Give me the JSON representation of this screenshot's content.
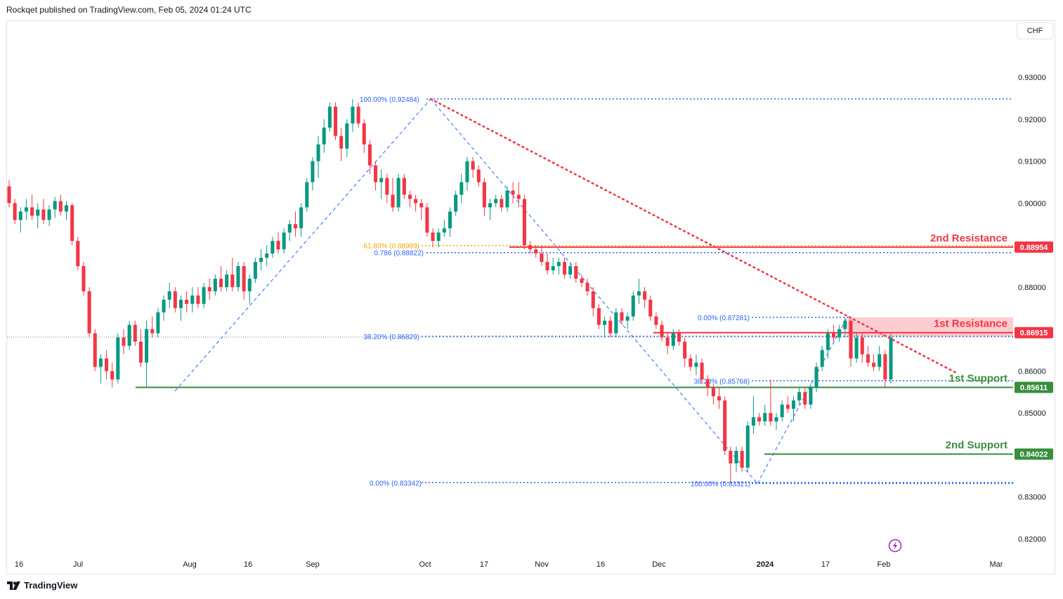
{
  "header": {
    "published": "Rockqet published on TradingView.com, Feb 05, 2024 01:24 UTC"
  },
  "toolbar": {
    "currency": "CHF"
  },
  "footer": {
    "brand": "TradingView"
  },
  "icons": {
    "footer_logo": "tradingview-logo-icon",
    "flash": "lightning-icon"
  },
  "colors": {
    "up": "#089981",
    "down": "#f23645",
    "fib": "#2962ff",
    "golden": "#f7a600",
    "resistance": "#f23645",
    "support": "#388e3c",
    "axis_text": "#131722"
  },
  "chart_data": {
    "type": "candlestick",
    "symbol_currency": "CHF",
    "ylim": [
      0.815,
      0.937
    ],
    "y_ticks": [
      "0.93000",
      "0.92000",
      "0.91000",
      "0.90000",
      "0.88000",
      "0.86000",
      "0.85000",
      "0.83000",
      "0.82000"
    ],
    "x_ticks": [
      {
        "label": "16",
        "bold": false
      },
      {
        "label": "Jul",
        "bold": false
      },
      {
        "label": "Aug",
        "bold": false
      },
      {
        "label": "16",
        "bold": false
      },
      {
        "label": "Sep",
        "bold": false
      },
      {
        "label": "Oct",
        "bold": false
      },
      {
        "label": "17",
        "bold": false
      },
      {
        "label": "Nov",
        "bold": false
      },
      {
        "label": "16",
        "bold": false
      },
      {
        "label": "Dec",
        "bold": false
      },
      {
        "label": "2024",
        "bold": true
      },
      {
        "label": "17",
        "bold": false
      },
      {
        "label": "Feb",
        "bold": false
      },
      {
        "label": "Mar",
        "bold": false
      }
    ],
    "price_tags": [
      {
        "label": "0.88954",
        "value": 0.88954,
        "color": "#f23645"
      },
      {
        "label": "0.86915",
        "value": 0.86915,
        "color": "#f23645"
      },
      {
        "label": "0.85611",
        "value": 0.85611,
        "color": "#388e3c"
      },
      {
        "label": "0.84022",
        "value": 0.84022,
        "color": "#388e3c"
      }
    ],
    "levels": [
      {
        "name": "2nd Resistance",
        "value": 0.88954,
        "color": "#f23645"
      },
      {
        "name": "1st Resistance",
        "value": 0.86915,
        "color": "#f23645"
      },
      {
        "name": "1st Support",
        "value": 0.85611,
        "color": "#388e3c"
      },
      {
        "name": "2nd Support",
        "value": 0.84022,
        "color": "#388e3c"
      }
    ],
    "fib_labels": [
      {
        "text": "100.00% (0.92484)",
        "value": 0.92484,
        "color": "#2962ff"
      },
      {
        "text": "61.80% (0.88989)",
        "value": 0.88989,
        "color": "#f7a600"
      },
      {
        "text": "0.786 (0.88822)",
        "value": 0.88822,
        "color": "#2962ff"
      },
      {
        "text": "38.20% (0.86829)",
        "value": 0.86829,
        "color": "#2962ff"
      },
      {
        "text": "0.00% (0.87281)",
        "value": 0.87281,
        "color": "#2962ff"
      },
      {
        "text": "38.20% (0.85768)",
        "value": 0.85768,
        "color": "#2962ff"
      },
      {
        "text": "0.00% (0.83342)",
        "value": 0.83342,
        "color": "#2962ff"
      },
      {
        "text": "100.00% (0.83321)",
        "value": 0.83321,
        "color": "#2962ff"
      }
    ],
    "candles": [
      {
        "o": 0.904,
        "h": 0.9055,
        "l": 0.899,
        "c": 0.9
      },
      {
        "o": 0.9,
        "h": 0.901,
        "l": 0.895,
        "c": 0.896
      },
      {
        "o": 0.896,
        "h": 0.899,
        "l": 0.893,
        "c": 0.898
      },
      {
        "o": 0.898,
        "h": 0.901,
        "l": 0.896,
        "c": 0.899
      },
      {
        "o": 0.899,
        "h": 0.902,
        "l": 0.896,
        "c": 0.897
      },
      {
        "o": 0.897,
        "h": 0.9,
        "l": 0.894,
        "c": 0.8985
      },
      {
        "o": 0.8985,
        "h": 0.901,
        "l": 0.895,
        "c": 0.896
      },
      {
        "o": 0.896,
        "h": 0.8995,
        "l": 0.8945,
        "c": 0.8985
      },
      {
        "o": 0.8985,
        "h": 0.9015,
        "l": 0.8965,
        "c": 0.9005
      },
      {
        "o": 0.9005,
        "h": 0.902,
        "l": 0.897,
        "c": 0.898
      },
      {
        "o": 0.898,
        "h": 0.9005,
        "l": 0.896,
        "c": 0.8995
      },
      {
        "o": 0.8995,
        "h": 0.9,
        "l": 0.89,
        "c": 0.891
      },
      {
        "o": 0.891,
        "h": 0.892,
        "l": 0.884,
        "c": 0.885
      },
      {
        "o": 0.885,
        "h": 0.886,
        "l": 0.878,
        "c": 0.879
      },
      {
        "o": 0.879,
        "h": 0.88,
        "l": 0.868,
        "c": 0.869
      },
      {
        "o": 0.869,
        "h": 0.87,
        "l": 0.86,
        "c": 0.861
      },
      {
        "o": 0.861,
        "h": 0.864,
        "l": 0.857,
        "c": 0.863
      },
      {
        "o": 0.863,
        "h": 0.865,
        "l": 0.858,
        "c": 0.86
      },
      {
        "o": 0.86,
        "h": 0.862,
        "l": 0.8561,
        "c": 0.858
      },
      {
        "o": 0.858,
        "h": 0.869,
        "l": 0.857,
        "c": 0.868
      },
      {
        "o": 0.868,
        "h": 0.87,
        "l": 0.864,
        "c": 0.866
      },
      {
        "o": 0.866,
        "h": 0.872,
        "l": 0.865,
        "c": 0.871
      },
      {
        "o": 0.871,
        "h": 0.872,
        "l": 0.866,
        "c": 0.867
      },
      {
        "o": 0.867,
        "h": 0.87,
        "l": 0.861,
        "c": 0.862
      },
      {
        "o": 0.862,
        "h": 0.872,
        "l": 0.8561,
        "c": 0.87
      },
      {
        "o": 0.87,
        "h": 0.873,
        "l": 0.868,
        "c": 0.869
      },
      {
        "o": 0.869,
        "h": 0.875,
        "l": 0.868,
        "c": 0.874
      },
      {
        "o": 0.874,
        "h": 0.878,
        "l": 0.872,
        "c": 0.877
      },
      {
        "o": 0.877,
        "h": 0.881,
        "l": 0.875,
        "c": 0.879
      },
      {
        "o": 0.879,
        "h": 0.88,
        "l": 0.874,
        "c": 0.875
      },
      {
        "o": 0.875,
        "h": 0.878,
        "l": 0.872,
        "c": 0.877
      },
      {
        "o": 0.877,
        "h": 0.879,
        "l": 0.874,
        "c": 0.876
      },
      {
        "o": 0.876,
        "h": 0.88,
        "l": 0.874,
        "c": 0.878
      },
      {
        "o": 0.878,
        "h": 0.88,
        "l": 0.875,
        "c": 0.876
      },
      {
        "o": 0.876,
        "h": 0.881,
        "l": 0.875,
        "c": 0.88
      },
      {
        "o": 0.88,
        "h": 0.882,
        "l": 0.877,
        "c": 0.879
      },
      {
        "o": 0.879,
        "h": 0.883,
        "l": 0.878,
        "c": 0.882
      },
      {
        "o": 0.882,
        "h": 0.885,
        "l": 0.879,
        "c": 0.88
      },
      {
        "o": 0.88,
        "h": 0.884,
        "l": 0.879,
        "c": 0.883
      },
      {
        "o": 0.883,
        "h": 0.887,
        "l": 0.879,
        "c": 0.88
      },
      {
        "o": 0.88,
        "h": 0.886,
        "l": 0.879,
        "c": 0.885
      },
      {
        "o": 0.885,
        "h": 0.886,
        "l": 0.877,
        "c": 0.879
      },
      {
        "o": 0.879,
        "h": 0.883,
        "l": 0.876,
        "c": 0.882
      },
      {
        "o": 0.882,
        "h": 0.887,
        "l": 0.881,
        "c": 0.886
      },
      {
        "o": 0.886,
        "h": 0.889,
        "l": 0.884,
        "c": 0.887
      },
      {
        "o": 0.887,
        "h": 0.89,
        "l": 0.885,
        "c": 0.888
      },
      {
        "o": 0.888,
        "h": 0.892,
        "l": 0.887,
        "c": 0.891
      },
      {
        "o": 0.891,
        "h": 0.893,
        "l": 0.888,
        "c": 0.889
      },
      {
        "o": 0.889,
        "h": 0.894,
        "l": 0.888,
        "c": 0.893
      },
      {
        "o": 0.893,
        "h": 0.896,
        "l": 0.891,
        "c": 0.895
      },
      {
        "o": 0.895,
        "h": 0.898,
        "l": 0.892,
        "c": 0.894
      },
      {
        "o": 0.894,
        "h": 0.9,
        "l": 0.892,
        "c": 0.899
      },
      {
        "o": 0.899,
        "h": 0.906,
        "l": 0.898,
        "c": 0.905
      },
      {
        "o": 0.905,
        "h": 0.911,
        "l": 0.903,
        "c": 0.91
      },
      {
        "o": 0.91,
        "h": 0.916,
        "l": 0.906,
        "c": 0.914
      },
      {
        "o": 0.914,
        "h": 0.92,
        "l": 0.912,
        "c": 0.918
      },
      {
        "o": 0.918,
        "h": 0.924,
        "l": 0.917,
        "c": 0.923
      },
      {
        "o": 0.923,
        "h": 0.924,
        "l": 0.915,
        "c": 0.916
      },
      {
        "o": 0.916,
        "h": 0.918,
        "l": 0.91,
        "c": 0.913
      },
      {
        "o": 0.913,
        "h": 0.92,
        "l": 0.911,
        "c": 0.919
      },
      {
        "o": 0.919,
        "h": 0.9248,
        "l": 0.917,
        "c": 0.923
      },
      {
        "o": 0.923,
        "h": 0.924,
        "l": 0.918,
        "c": 0.919
      },
      {
        "o": 0.919,
        "h": 0.92,
        "l": 0.912,
        "c": 0.914
      },
      {
        "o": 0.914,
        "h": 0.915,
        "l": 0.907,
        "c": 0.909
      },
      {
        "o": 0.909,
        "h": 0.91,
        "l": 0.903,
        "c": 0.905
      },
      {
        "o": 0.905,
        "h": 0.908,
        "l": 0.901,
        "c": 0.906
      },
      {
        "o": 0.906,
        "h": 0.907,
        "l": 0.9,
        "c": 0.902
      },
      {
        "o": 0.902,
        "h": 0.906,
        "l": 0.898,
        "c": 0.899
      },
      {
        "o": 0.899,
        "h": 0.907,
        "l": 0.898,
        "c": 0.906
      },
      {
        "o": 0.906,
        "h": 0.907,
        "l": 0.901,
        "c": 0.902
      },
      {
        "o": 0.902,
        "h": 0.903,
        "l": 0.899,
        "c": 0.901
      },
      {
        "o": 0.901,
        "h": 0.902,
        "l": 0.898,
        "c": 0.9
      },
      {
        "o": 0.9,
        "h": 0.901,
        "l": 0.896,
        "c": 0.899
      },
      {
        "o": 0.899,
        "h": 0.9,
        "l": 0.892,
        "c": 0.893
      },
      {
        "o": 0.893,
        "h": 0.894,
        "l": 0.8895,
        "c": 0.891
      },
      {
        "o": 0.891,
        "h": 0.894,
        "l": 0.8895,
        "c": 0.893
      },
      {
        "o": 0.893,
        "h": 0.896,
        "l": 0.892,
        "c": 0.894
      },
      {
        "o": 0.894,
        "h": 0.899,
        "l": 0.892,
        "c": 0.898
      },
      {
        "o": 0.898,
        "h": 0.903,
        "l": 0.897,
        "c": 0.902
      },
      {
        "o": 0.902,
        "h": 0.907,
        "l": 0.9,
        "c": 0.905
      },
      {
        "o": 0.905,
        "h": 0.911,
        "l": 0.903,
        "c": 0.91
      },
      {
        "o": 0.91,
        "h": 0.911,
        "l": 0.906,
        "c": 0.908
      },
      {
        "o": 0.908,
        "h": 0.909,
        "l": 0.904,
        "c": 0.905
      },
      {
        "o": 0.905,
        "h": 0.906,
        "l": 0.897,
        "c": 0.899
      },
      {
        "o": 0.899,
        "h": 0.901,
        "l": 0.896,
        "c": 0.9
      },
      {
        "o": 0.9,
        "h": 0.902,
        "l": 0.899,
        "c": 0.901
      },
      {
        "o": 0.901,
        "h": 0.902,
        "l": 0.898,
        "c": 0.899
      },
      {
        "o": 0.899,
        "h": 0.904,
        "l": 0.898,
        "c": 0.903
      },
      {
        "o": 0.903,
        "h": 0.905,
        "l": 0.9,
        "c": 0.902
      },
      {
        "o": 0.902,
        "h": 0.905,
        "l": 0.899,
        "c": 0.901
      },
      {
        "o": 0.901,
        "h": 0.902,
        "l": 0.889,
        "c": 0.89
      },
      {
        "o": 0.89,
        "h": 0.891,
        "l": 0.888,
        "c": 0.889
      },
      {
        "o": 0.889,
        "h": 0.89,
        "l": 0.887,
        "c": 0.888
      },
      {
        "o": 0.888,
        "h": 0.89,
        "l": 0.885,
        "c": 0.886
      },
      {
        "o": 0.886,
        "h": 0.888,
        "l": 0.883,
        "c": 0.884
      },
      {
        "o": 0.884,
        "h": 0.887,
        "l": 0.883,
        "c": 0.885
      },
      {
        "o": 0.885,
        "h": 0.887,
        "l": 0.883,
        "c": 0.886
      },
      {
        "o": 0.886,
        "h": 0.887,
        "l": 0.882,
        "c": 0.883
      },
      {
        "o": 0.883,
        "h": 0.886,
        "l": 0.882,
        "c": 0.885
      },
      {
        "o": 0.885,
        "h": 0.886,
        "l": 0.881,
        "c": 0.882
      },
      {
        "o": 0.882,
        "h": 0.883,
        "l": 0.88,
        "c": 0.881
      },
      {
        "o": 0.881,
        "h": 0.882,
        "l": 0.878,
        "c": 0.879
      },
      {
        "o": 0.879,
        "h": 0.88,
        "l": 0.873,
        "c": 0.875
      },
      {
        "o": 0.875,
        "h": 0.876,
        "l": 0.87,
        "c": 0.871
      },
      {
        "o": 0.871,
        "h": 0.873,
        "l": 0.868,
        "c": 0.872
      },
      {
        "o": 0.872,
        "h": 0.873,
        "l": 0.868,
        "c": 0.869
      },
      {
        "o": 0.869,
        "h": 0.875,
        "l": 0.868,
        "c": 0.874
      },
      {
        "o": 0.874,
        "h": 0.875,
        "l": 0.871,
        "c": 0.872
      },
      {
        "o": 0.872,
        "h": 0.874,
        "l": 0.87,
        "c": 0.873
      },
      {
        "o": 0.873,
        "h": 0.879,
        "l": 0.872,
        "c": 0.878
      },
      {
        "o": 0.878,
        "h": 0.882,
        "l": 0.876,
        "c": 0.879
      },
      {
        "o": 0.879,
        "h": 0.88,
        "l": 0.875,
        "c": 0.877
      },
      {
        "o": 0.877,
        "h": 0.878,
        "l": 0.872,
        "c": 0.873
      },
      {
        "o": 0.873,
        "h": 0.874,
        "l": 0.87,
        "c": 0.871
      },
      {
        "o": 0.871,
        "h": 0.872,
        "l": 0.867,
        "c": 0.868
      },
      {
        "o": 0.868,
        "h": 0.869,
        "l": 0.864,
        "c": 0.866
      },
      {
        "o": 0.866,
        "h": 0.87,
        "l": 0.865,
        "c": 0.869
      },
      {
        "o": 0.869,
        "h": 0.87,
        "l": 0.866,
        "c": 0.867
      },
      {
        "o": 0.867,
        "h": 0.868,
        "l": 0.861,
        "c": 0.863
      },
      {
        "o": 0.863,
        "h": 0.864,
        "l": 0.86,
        "c": 0.861
      },
      {
        "o": 0.861,
        "h": 0.864,
        "l": 0.859,
        "c": 0.862
      },
      {
        "o": 0.862,
        "h": 0.863,
        "l": 0.857,
        "c": 0.858
      },
      {
        "o": 0.858,
        "h": 0.859,
        "l": 0.854,
        "c": 0.856
      },
      {
        "o": 0.856,
        "h": 0.857,
        "l": 0.852,
        "c": 0.854
      },
      {
        "o": 0.854,
        "h": 0.856,
        "l": 0.851,
        "c": 0.853
      },
      {
        "o": 0.853,
        "h": 0.854,
        "l": 0.84,
        "c": 0.841
      },
      {
        "o": 0.841,
        "h": 0.842,
        "l": 0.8332,
        "c": 0.838
      },
      {
        "o": 0.838,
        "h": 0.842,
        "l": 0.836,
        "c": 0.841
      },
      {
        "o": 0.841,
        "h": 0.842,
        "l": 0.836,
        "c": 0.837
      },
      {
        "o": 0.837,
        "h": 0.848,
        "l": 0.836,
        "c": 0.847
      },
      {
        "o": 0.847,
        "h": 0.854,
        "l": 0.845,
        "c": 0.849
      },
      {
        "o": 0.849,
        "h": 0.85,
        "l": 0.847,
        "c": 0.848
      },
      {
        "o": 0.848,
        "h": 0.852,
        "l": 0.847,
        "c": 0.85
      },
      {
        "o": 0.85,
        "h": 0.858,
        "l": 0.847,
        "c": 0.848
      },
      {
        "o": 0.848,
        "h": 0.85,
        "l": 0.846,
        "c": 0.849
      },
      {
        "o": 0.849,
        "h": 0.853,
        "l": 0.848,
        "c": 0.852
      },
      {
        "o": 0.852,
        "h": 0.854,
        "l": 0.85,
        "c": 0.851
      },
      {
        "o": 0.851,
        "h": 0.854,
        "l": 0.848,
        "c": 0.853
      },
      {
        "o": 0.853,
        "h": 0.856,
        "l": 0.852,
        "c": 0.855
      },
      {
        "o": 0.855,
        "h": 0.856,
        "l": 0.851,
        "c": 0.852
      },
      {
        "o": 0.852,
        "h": 0.857,
        "l": 0.851,
        "c": 0.856
      },
      {
        "o": 0.856,
        "h": 0.862,
        "l": 0.855,
        "c": 0.861
      },
      {
        "o": 0.861,
        "h": 0.866,
        "l": 0.86,
        "c": 0.865
      },
      {
        "o": 0.865,
        "h": 0.87,
        "l": 0.863,
        "c": 0.869
      },
      {
        "o": 0.869,
        "h": 0.871,
        "l": 0.867,
        "c": 0.868
      },
      {
        "o": 0.868,
        "h": 0.871,
        "l": 0.867,
        "c": 0.87
      },
      {
        "o": 0.87,
        "h": 0.8728,
        "l": 0.868,
        "c": 0.872
      },
      {
        "o": 0.872,
        "h": 0.8725,
        "l": 0.861,
        "c": 0.863
      },
      {
        "o": 0.863,
        "h": 0.869,
        "l": 0.862,
        "c": 0.868
      },
      {
        "o": 0.868,
        "h": 0.869,
        "l": 0.862,
        "c": 0.864
      },
      {
        "o": 0.864,
        "h": 0.866,
        "l": 0.861,
        "c": 0.862
      },
      {
        "o": 0.862,
        "h": 0.864,
        "l": 0.86,
        "c": 0.861
      },
      {
        "o": 0.861,
        "h": 0.866,
        "l": 0.86,
        "c": 0.864
      },
      {
        "o": 0.864,
        "h": 0.865,
        "l": 0.8561,
        "c": 0.858
      },
      {
        "o": 0.858,
        "h": 0.869,
        "l": 0.857,
        "c": 0.868
      }
    ]
  }
}
